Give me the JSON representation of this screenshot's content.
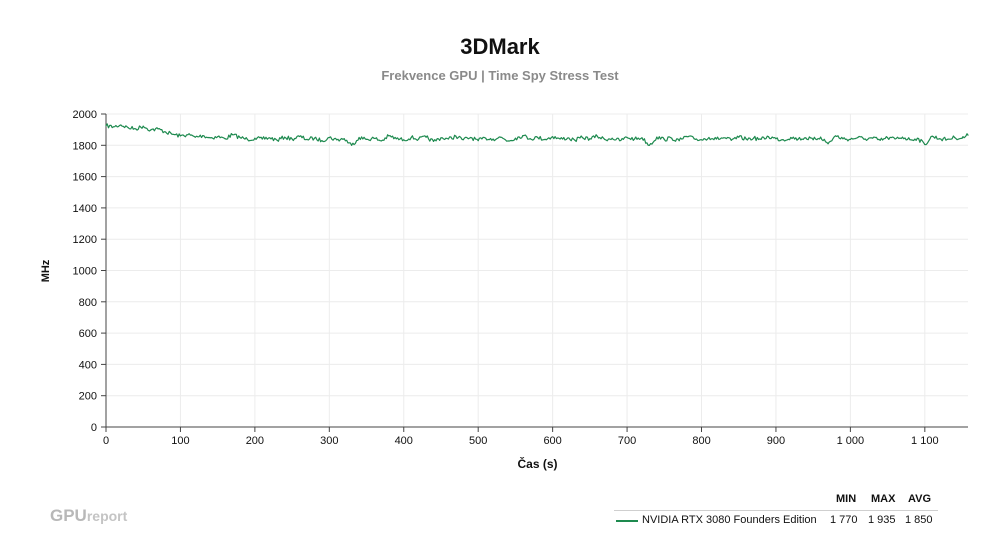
{
  "title": "3DMark",
  "subtitle": "Frekvence GPU | Time Spy Stress Test",
  "watermark": {
    "main": "GPU",
    "sub": "report"
  },
  "colors": {
    "series": "#1e8a4f",
    "grid": "#ececec",
    "axis": "#444444"
  },
  "legend": {
    "headers": {
      "min": "MIN",
      "max": "MAX",
      "avg": "AVG"
    },
    "rows": [
      {
        "name": "NVIDIA RTX 3080 Founders Edition",
        "min": "1 770",
        "max": "1 935",
        "avg": "1 850"
      }
    ]
  },
  "chart_data": {
    "type": "line",
    "title": "3DMark",
    "subtitle": "Frekvence GPU | Time Spy Stress Test",
    "xlabel": "Čas (s)",
    "ylabel": "MHz",
    "xlim": [
      0,
      1158
    ],
    "ylim": [
      0,
      2000
    ],
    "xticks": [
      0,
      100,
      200,
      300,
      400,
      500,
      600,
      700,
      800,
      900,
      1000,
      1100
    ],
    "xtick_labels": [
      "0",
      "100",
      "200",
      "300",
      "400",
      "500",
      "600",
      "700",
      "800",
      "900",
      "1 000",
      "1 100"
    ],
    "yticks": [
      0,
      200,
      400,
      600,
      800,
      1000,
      1200,
      1400,
      1600,
      1800,
      2000
    ],
    "grid": true,
    "legend_position": "bottom-right",
    "series": [
      {
        "name": "NVIDIA RTX 3080 Founders Edition",
        "color": "#1e8a4f",
        "x": [
          0,
          10,
          20,
          30,
          40,
          50,
          60,
          70,
          80,
          90,
          100,
          110,
          120,
          130,
          140,
          150,
          160,
          170,
          180,
          190,
          200,
          210,
          220,
          230,
          240,
          250,
          260,
          270,
          280,
          290,
          300,
          310,
          320,
          330,
          340,
          350,
          360,
          370,
          380,
          390,
          400,
          410,
          420,
          430,
          440,
          450,
          460,
          470,
          480,
          490,
          500,
          510,
          520,
          530,
          540,
          550,
          560,
          570,
          580,
          590,
          600,
          610,
          620,
          630,
          640,
          650,
          660,
          670,
          680,
          690,
          700,
          710,
          720,
          730,
          740,
          750,
          760,
          770,
          780,
          790,
          800,
          810,
          820,
          830,
          840,
          850,
          860,
          870,
          880,
          890,
          900,
          910,
          920,
          930,
          940,
          950,
          960,
          970,
          980,
          990,
          1000,
          1010,
          1020,
          1030,
          1040,
          1050,
          1060,
          1070,
          1080,
          1090,
          1100,
          1110,
          1120,
          1130,
          1140,
          1150,
          1158
        ],
        "y": [
          1925,
          1918,
          1930,
          1912,
          1905,
          1922,
          1898,
          1905,
          1885,
          1870,
          1860,
          1868,
          1852,
          1862,
          1848,
          1855,
          1842,
          1868,
          1850,
          1838,
          1845,
          1840,
          1848,
          1832,
          1852,
          1840,
          1856,
          1838,
          1845,
          1830,
          1850,
          1835,
          1842,
          1800,
          1850,
          1838,
          1845,
          1828,
          1860,
          1842,
          1835,
          1850,
          1840,
          1852,
          1825,
          1848,
          1840,
          1858,
          1836,
          1850,
          1830,
          1846,
          1840,
          1852,
          1828,
          1845,
          1862,
          1842,
          1850,
          1838,
          1855,
          1840,
          1846,
          1832,
          1850,
          1842,
          1858,
          1838,
          1845,
          1830,
          1850,
          1840,
          1848,
          1800,
          1852,
          1838,
          1845,
          1830,
          1856,
          1842,
          1835,
          1850,
          1840,
          1848,
          1832,
          1852,
          1840,
          1846,
          1838,
          1855,
          1842,
          1835,
          1850,
          1840,
          1848,
          1836,
          1852,
          1810,
          1860,
          1842,
          1838,
          1850,
          1840,
          1846,
          1832,
          1848,
          1840,
          1852,
          1836,
          1845,
          1805,
          1858,
          1842,
          1838,
          1850,
          1845,
          1865
        ]
      }
    ]
  }
}
